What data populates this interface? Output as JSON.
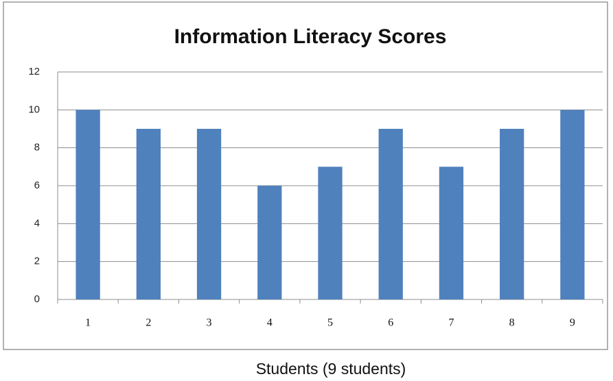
{
  "chart_data": {
    "type": "bar",
    "title": "Information  Literacy Scores",
    "x_label": "Students (9 students)",
    "categories": [
      "1",
      "2",
      "3",
      "4",
      "5",
      "6",
      "7",
      "8",
      "9"
    ],
    "values": [
      10,
      9,
      9,
      6,
      7,
      9,
      7,
      9,
      10
    ],
    "color": "#4f81bd",
    "ylim": [
      0,
      12
    ],
    "yticks": [
      0,
      2,
      4,
      6,
      8,
      10,
      12
    ],
    "grid": true
  }
}
